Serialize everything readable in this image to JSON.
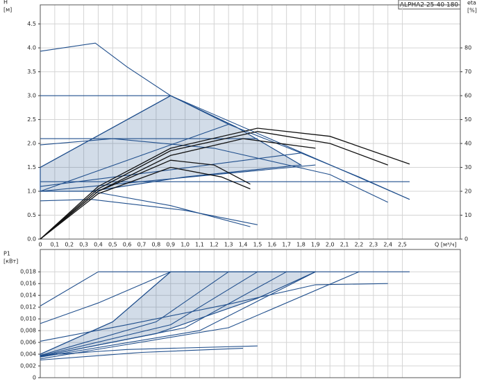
{
  "chart_data": [
    {
      "type": "line",
      "title": "ALPHA2 25-40 180",
      "ylabel": "H",
      "yunit": "[м]",
      "y2label": "eta",
      "y2unit": "[%]",
      "xlabel": "Q [м³/ч]",
      "xlim": [
        0,
        2.9
      ],
      "ylim": [
        0,
        4.9
      ],
      "y2lim": [
        0,
        98
      ],
      "grid": true,
      "xticks": [
        0,
        {
          "value": 0.1,
          "label": "0,1"
        },
        {
          "value": 0.2,
          "label": "0,2"
        },
        {
          "value": 0.3,
          "label": "0,3"
        },
        {
          "value": 0.4,
          "label": "0,4"
        },
        {
          "value": 0.5,
          "label": "0,5"
        },
        {
          "value": 0.6,
          "label": "0,6"
        },
        {
          "value": 0.7,
          "label": "0,7"
        },
        {
          "value": 0.8,
          "label": "0,8"
        },
        {
          "value": 0.9,
          "label": "0,9"
        },
        {
          "value": 1.0,
          "label": "1,0"
        },
        {
          "value": 1.1,
          "label": "1,1"
        },
        {
          "value": 1.2,
          "label": "1,2"
        },
        {
          "value": 1.3,
          "label": "1,3"
        },
        {
          "value": 1.4,
          "label": "1,4"
        },
        {
          "value": 1.5,
          "label": "1,5"
        },
        {
          "value": 1.6,
          "label": "1,6"
        },
        {
          "value": 1.7,
          "label": "1,7"
        },
        {
          "value": 1.8,
          "label": "1,8"
        },
        {
          "value": 1.9,
          "label": "1,9"
        },
        {
          "value": 2.0,
          "label": "2,0"
        },
        {
          "value": 2.1,
          "label": "2,1"
        },
        {
          "value": 2.2,
          "label": "2,2"
        },
        {
          "value": 2.3,
          "label": "2,3"
        },
        {
          "value": 2.4,
          "label": "2,4"
        },
        {
          "value": 2.5,
          "label": "2,5"
        }
      ],
      "yticks": [
        {
          "value": 0,
          "label": "0.0"
        },
        {
          "value": 0.5,
          "label": "0.5"
        },
        {
          "value": 1,
          "label": "1.0"
        },
        {
          "value": 1.5,
          "label": "1.5"
        },
        {
          "value": 2,
          "label": "2.0"
        },
        {
          "value": 2.5,
          "label": "2.5"
        },
        {
          "value": 3,
          "label": "3.0"
        },
        {
          "value": 3.5,
          "label": "3.5"
        },
        {
          "value": 4,
          "label": "4.0"
        },
        {
          "value": 4.5,
          "label": "4.5"
        }
      ],
      "y2ticks": [
        0,
        10,
        20,
        30,
        40,
        50,
        60,
        70,
        80
      ],
      "series": [
        {
          "kind": "area",
          "color": "#1f4e8c",
          "x": [
            0,
            0.9,
            1.35,
            1.8,
            1.0,
            0.35,
            0
          ],
          "values": [
            1.5,
            3.0,
            2.35,
            1.55,
            1.3,
            1.0,
            1.0
          ]
        },
        {
          "kind": "line",
          "color": "#1f4e8c",
          "x": [
            0,
            0.38,
            0.6,
            0.9,
            1.3,
            1.8,
            2.2,
            2.55
          ],
          "values": [
            3.93,
            4.1,
            3.6,
            3.0,
            2.4,
            1.8,
            1.3,
            0.83
          ]
        },
        {
          "kind": "line",
          "color": "#1f4e8c",
          "x": [
            0,
            0.9
          ],
          "values": [
            3.0,
            3.0
          ]
        },
        {
          "kind": "line",
          "color": "#1f4e8c",
          "x": [
            0,
            1.5
          ],
          "values": [
            2.1,
            2.1
          ]
        },
        {
          "kind": "line",
          "color": "#1f4e8c",
          "x": [
            0,
            2.55
          ],
          "values": [
            1.2,
            1.2
          ]
        },
        {
          "kind": "line",
          "color": "#1f4e8c",
          "x": [
            0.9,
            2.55
          ],
          "values": [
            3.0,
            0.83
          ]
        },
        {
          "kind": "line",
          "color": "#1f4e8c",
          "x": [
            0,
            0.9
          ],
          "values": [
            1.5,
            3.0
          ]
        },
        {
          "kind": "line",
          "color": "#1f4e8c",
          "x": [
            0,
            1.3
          ],
          "values": [
            1.0,
            2.4
          ]
        },
        {
          "kind": "line",
          "color": "#1f4e8c",
          "x": [
            0,
            1.8
          ],
          "values": [
            1.1,
            1.8
          ]
        },
        {
          "kind": "line",
          "color": "#1f4e8c",
          "x": [
            0,
            1.9
          ],
          "values": [
            1.0,
            1.55
          ]
        },
        {
          "kind": "line",
          "color": "#1f4e8c",
          "x": [
            0,
            0.5,
            1.2,
            2.0,
            2.4
          ],
          "values": [
            1.97,
            2.1,
            1.9,
            1.35,
            0.77
          ]
        },
        {
          "kind": "line",
          "color": "#1f4e8c",
          "x": [
            0,
            0.35,
            1.0,
            1.5
          ],
          "values": [
            0.8,
            0.83,
            0.6,
            0.3
          ]
        },
        {
          "kind": "line",
          "color": "#1f4e8c",
          "x": [
            0.35,
            0.9,
            1.45
          ],
          "values": [
            1.0,
            0.7,
            0.26
          ]
        },
        {
          "kind": "line",
          "color": "#111111",
          "axis": "y2",
          "x": [
            0,
            0.4,
            0.9,
            1.5,
            2.0,
            2.55
          ],
          "values": [
            0,
            22,
            38,
            46.4,
            43,
            31.4
          ]
        },
        {
          "kind": "line",
          "color": "#111111",
          "axis": "y2",
          "x": [
            0,
            0.4,
            0.9,
            1.5,
            2.0,
            2.4
          ],
          "values": [
            0,
            21,
            37,
            45,
            40,
            31
          ]
        },
        {
          "kind": "line",
          "color": "#111111",
          "axis": "y2",
          "x": [
            0,
            0.4,
            0.9,
            1.4,
            1.9
          ],
          "values": [
            0,
            20,
            35,
            42,
            38
          ]
        },
        {
          "kind": "line",
          "color": "#111111",
          "axis": "y2",
          "x": [
            0,
            0.4,
            0.9,
            1.2,
            1.45
          ],
          "values": [
            0,
            20,
            33,
            31,
            23
          ]
        },
        {
          "kind": "line",
          "color": "#111111",
          "axis": "y2",
          "x": [
            0,
            0.4,
            0.9,
            1.25,
            1.45
          ],
          "values": [
            0,
            19,
            30,
            26,
            21
          ]
        }
      ]
    },
    {
      "type": "line",
      "ylabel": "P1",
      "yunit": "[кВт]",
      "xlim": [
        0,
        2.9
      ],
      "ylim": [
        0,
        0.0218
      ],
      "grid": true,
      "yticks": [
        0,
        {
          "value": 0.002,
          "label": "0,002"
        },
        {
          "value": 0.004,
          "label": "0,004"
        },
        {
          "value": 0.006,
          "label": "0,006"
        },
        {
          "value": 0.008,
          "label": "0,008"
        },
        {
          "value": 0.01,
          "label": "0,010"
        },
        {
          "value": 0.012,
          "label": "0,012"
        },
        {
          "value": 0.014,
          "label": "0,014"
        },
        {
          "value": 0.016,
          "label": "0,016"
        },
        {
          "value": 0.018,
          "label": "0,018"
        }
      ],
      "series": [
        {
          "kind": "area",
          "color": "#1f4e8c",
          "x": [
            0,
            0.5,
            0.9,
            1.9,
            1.5,
            0.8,
            0
          ],
          "values": [
            0.004,
            0.0095,
            0.018,
            0.018,
            0.0135,
            0.0075,
            0.0036
          ]
        },
        {
          "kind": "line",
          "color": "#1f4e8c",
          "x": [
            0.4,
            2.55
          ],
          "values": [
            0.018,
            0.018
          ]
        },
        {
          "kind": "line",
          "color": "#1f4e8c",
          "x": [
            0,
            0.4
          ],
          "values": [
            0.0122,
            0.018
          ]
        },
        {
          "kind": "line",
          "color": "#1f4e8c",
          "x": [
            0,
            0.4,
            0.9
          ],
          "values": [
            0.0092,
            0.0127,
            0.018
          ]
        },
        {
          "kind": "line",
          "color": "#1f4e8c",
          "x": [
            0,
            0.5,
            0.9
          ],
          "values": [
            0.004,
            0.0095,
            0.018
          ]
        },
        {
          "kind": "line",
          "color": "#1f4e8c",
          "x": [
            0,
            0.8,
            1.3
          ],
          "values": [
            0.0038,
            0.0095,
            0.018
          ]
        },
        {
          "kind": "line",
          "color": "#1f4e8c",
          "x": [
            0,
            0.9,
            1.5
          ],
          "values": [
            0.0037,
            0.009,
            0.018
          ]
        },
        {
          "kind": "line",
          "color": "#1f4e8c",
          "x": [
            0,
            1.0,
            1.7
          ],
          "values": [
            0.0036,
            0.0085,
            0.018
          ]
        },
        {
          "kind": "line",
          "color": "#1f4e8c",
          "x": [
            0,
            1.1,
            1.9
          ],
          "values": [
            0.0035,
            0.008,
            0.018
          ]
        },
        {
          "kind": "line",
          "color": "#1f4e8c",
          "x": [
            0,
            1.3,
            2.2
          ],
          "values": [
            0.0032,
            0.0085,
            0.018
          ]
        },
        {
          "kind": "line",
          "color": "#1f4e8c",
          "x": [
            0,
            0.6,
            1.3,
            1.9,
            2.4
          ],
          "values": [
            0.0062,
            0.009,
            0.0125,
            0.0158,
            0.016
          ]
        },
        {
          "kind": "line",
          "color": "#1f4e8c",
          "x": [
            0,
            0.6,
            1.5
          ],
          "values": [
            0.0038,
            0.0048,
            0.0054
          ]
        },
        {
          "kind": "line",
          "color": "#1f4e8c",
          "x": [
            0,
            0.7,
            1.4
          ],
          "values": [
            0.003,
            0.0043,
            0.005
          ]
        }
      ]
    }
  ]
}
